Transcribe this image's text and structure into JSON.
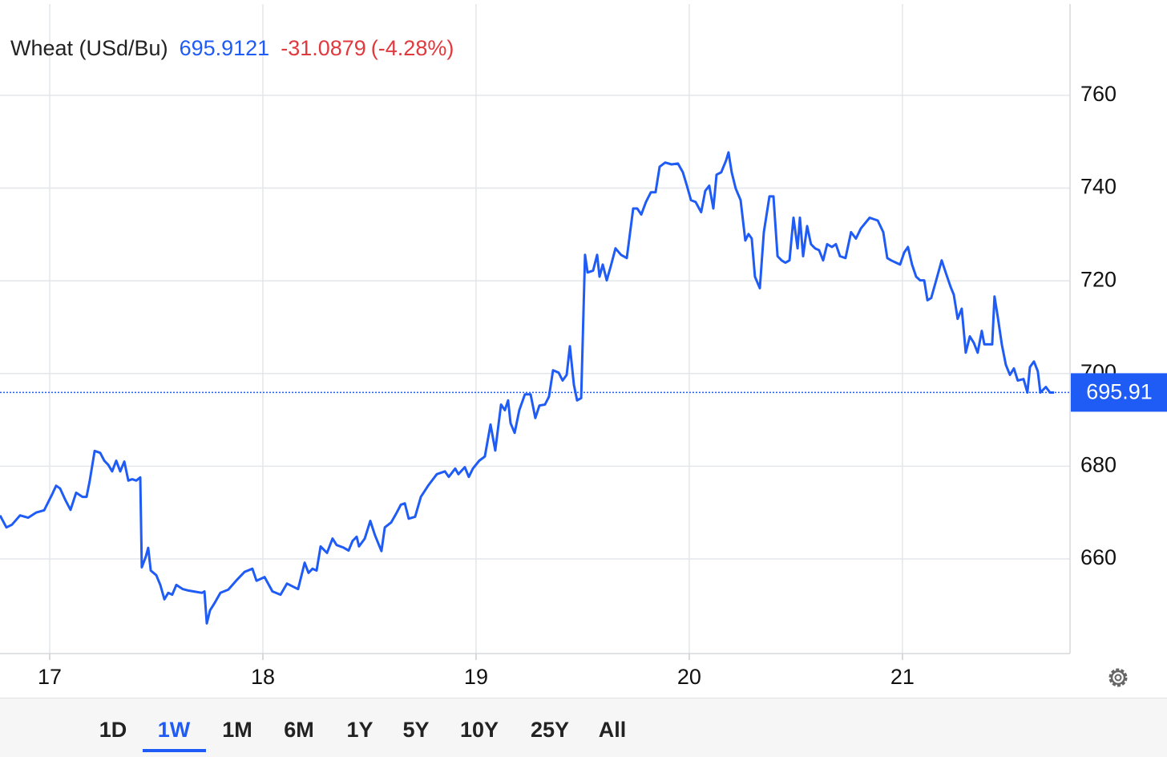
{
  "chart_data": {
    "type": "line",
    "title": "Wheat (USd/Bu)",
    "last": {
      "value": 695.9121,
      "label": "695.91"
    },
    "change": -31.0879,
    "change_pct": {
      "value": -4.28,
      "label": "(-4.28%)"
    },
    "color": "#1f5bf5",
    "xlim": [
      16.767,
      21.786
    ],
    "xticks": [
      17,
      18,
      19,
      20,
      21
    ],
    "ylim": [
      639.6,
      779.7
    ],
    "yticks": [
      660,
      680,
      700,
      720,
      740,
      760
    ],
    "grid": true,
    "ranges": [
      "1D",
      "1W",
      "1M",
      "6M",
      "1Y",
      "5Y",
      "10Y",
      "25Y",
      "All"
    ],
    "selected_range": "1W",
    "x": [
      16.767,
      16.797,
      16.823,
      16.861,
      16.899,
      16.936,
      16.974,
      17.011,
      17.03,
      17.049,
      17.075,
      17.098,
      17.124,
      17.154,
      17.173,
      17.188,
      17.211,
      17.237,
      17.256,
      17.275,
      17.293,
      17.312,
      17.331,
      17.35,
      17.369,
      17.387,
      17.406,
      17.425,
      17.432,
      17.451,
      17.462,
      17.474,
      17.5,
      17.519,
      17.538,
      17.556,
      17.575,
      17.594,
      17.624,
      17.65,
      17.688,
      17.714,
      17.726,
      17.737,
      17.752,
      17.775,
      17.801,
      17.838,
      17.876,
      17.914,
      17.951,
      17.97,
      18.008,
      18.045,
      18.083,
      18.113,
      18.139,
      18.165,
      18.196,
      18.214,
      18.233,
      18.252,
      18.271,
      18.301,
      18.327,
      18.346,
      18.376,
      18.402,
      18.421,
      18.44,
      18.451,
      18.478,
      18.504,
      18.526,
      18.541,
      18.556,
      18.572,
      18.602,
      18.628,
      18.647,
      18.666,
      18.684,
      18.714,
      18.741,
      18.778,
      18.816,
      18.854,
      18.872,
      18.902,
      18.917,
      18.947,
      18.966,
      18.985,
      19.015,
      19.041,
      19.068,
      19.09,
      19.117,
      19.135,
      19.15,
      19.162,
      19.181,
      19.203,
      19.229,
      19.256,
      19.278,
      19.297,
      19.323,
      19.342,
      19.361,
      19.387,
      19.406,
      19.425,
      19.44,
      19.459,
      19.474,
      19.493,
      19.511,
      19.523,
      19.549,
      19.568,
      19.579,
      19.594,
      19.613,
      19.632,
      19.654,
      19.68,
      19.707,
      19.737,
      19.756,
      19.775,
      19.797,
      19.82,
      19.842,
      19.861,
      19.887,
      19.917,
      19.947,
      19.97,
      19.989,
      20.008,
      20.03,
      20.056,
      20.075,
      20.094,
      20.113,
      20.128,
      20.15,
      20.173,
      20.184,
      20.199,
      20.218,
      20.241,
      20.263,
      20.278,
      20.293,
      20.308,
      20.331,
      20.35,
      20.376,
      20.395,
      20.414,
      20.433,
      20.451,
      20.47,
      20.489,
      20.508,
      20.519,
      20.534,
      20.553,
      20.571,
      20.59,
      20.609,
      20.628,
      20.647,
      20.669,
      20.688,
      20.707,
      20.733,
      20.759,
      20.782,
      20.805,
      20.846,
      20.884,
      20.91,
      20.929,
      20.947,
      20.97,
      20.989,
      21.008,
      21.026,
      21.045,
      21.064,
      21.083,
      21.102,
      21.117,
      21.135,
      21.158,
      21.184,
      21.203,
      21.226,
      21.241,
      21.259,
      21.278,
      21.297,
      21.316,
      21.335,
      21.353,
      21.372,
      21.384,
      21.398,
      21.421,
      21.432,
      21.447,
      21.466,
      21.485,
      21.504,
      21.523,
      21.541,
      21.568,
      21.586,
      21.598,
      21.617,
      21.635,
      21.647,
      21.673,
      21.692,
      21.711
    ],
    "values": [
      669.4,
      666.8,
      667.4,
      669.4,
      668.9,
      670.0,
      670.5,
      673.9,
      675.8,
      675.2,
      672.6,
      670.6,
      674.3,
      673.4,
      673.4,
      676.9,
      683.3,
      682.9,
      681.2,
      680.3,
      678.9,
      681.2,
      678.9,
      681.0,
      676.9,
      677.2,
      676.9,
      677.6,
      658.2,
      660.5,
      662.4,
      657.5,
      656.5,
      654.4,
      651.3,
      652.7,
      652.3,
      654.4,
      653.5,
      653.2,
      652.9,
      652.7,
      653.0,
      646.1,
      648.9,
      650.6,
      652.7,
      653.4,
      655.4,
      657.2,
      657.9,
      655.3,
      656.1,
      653.0,
      652.3,
      654.7,
      654.1,
      653.5,
      659.2,
      657.0,
      657.9,
      657.5,
      662.7,
      661.3,
      664.4,
      663.0,
      662.5,
      661.8,
      663.9,
      664.8,
      662.7,
      664.4,
      668.2,
      665.1,
      663.4,
      661.7,
      666.8,
      667.9,
      670.0,
      671.7,
      672.0,
      668.7,
      669.1,
      673.4,
      676.0,
      678.3,
      678.9,
      677.7,
      679.5,
      678.3,
      679.8,
      677.7,
      679.5,
      681.2,
      682.1,
      689.0,
      683.4,
      693.3,
      692.1,
      694.2,
      689.3,
      687.2,
      692.1,
      695.5,
      695.5,
      690.4,
      693.1,
      693.3,
      695.0,
      700.7,
      700.2,
      698.5,
      699.7,
      705.9,
      697.6,
      694.2,
      694.7,
      725.6,
      721.8,
      722.2,
      725.6,
      720.9,
      723.5,
      720.1,
      723.2,
      727.0,
      725.6,
      724.9,
      735.6,
      735.6,
      734.3,
      737.0,
      739.1,
      739.1,
      744.6,
      745.5,
      745.1,
      745.3,
      743.4,
      740.5,
      737.4,
      737.0,
      734.8,
      739.4,
      740.5,
      735.6,
      742.9,
      743.4,
      746.0,
      747.7,
      743.4,
      739.9,
      737.4,
      728.7,
      730.1,
      729.1,
      720.9,
      718.4,
      730.5,
      738.2,
      738.2,
      725.3,
      724.4,
      723.9,
      724.4,
      733.6,
      727.0,
      733.6,
      725.3,
      731.8,
      727.9,
      727.0,
      726.6,
      724.4,
      727.9,
      727.3,
      727.9,
      725.3,
      724.9,
      730.5,
      729.1,
      731.3,
      733.6,
      733.0,
      730.5,
      724.9,
      724.4,
      723.9,
      723.5,
      726.1,
      727.3,
      723.5,
      720.9,
      720.1,
      720.1,
      715.8,
      716.3,
      720.1,
      724.4,
      721.8,
      718.7,
      717.0,
      711.8,
      714.0,
      704.5,
      708.0,
      706.6,
      704.5,
      709.2,
      706.3,
      706.3,
      706.3,
      716.6,
      712.3,
      706.3,
      701.9,
      699.7,
      701.1,
      698.5,
      698.8,
      695.9,
      701.4,
      702.6,
      700.5,
      695.9,
      697.1,
      695.9,
      695.9
    ]
  }
}
